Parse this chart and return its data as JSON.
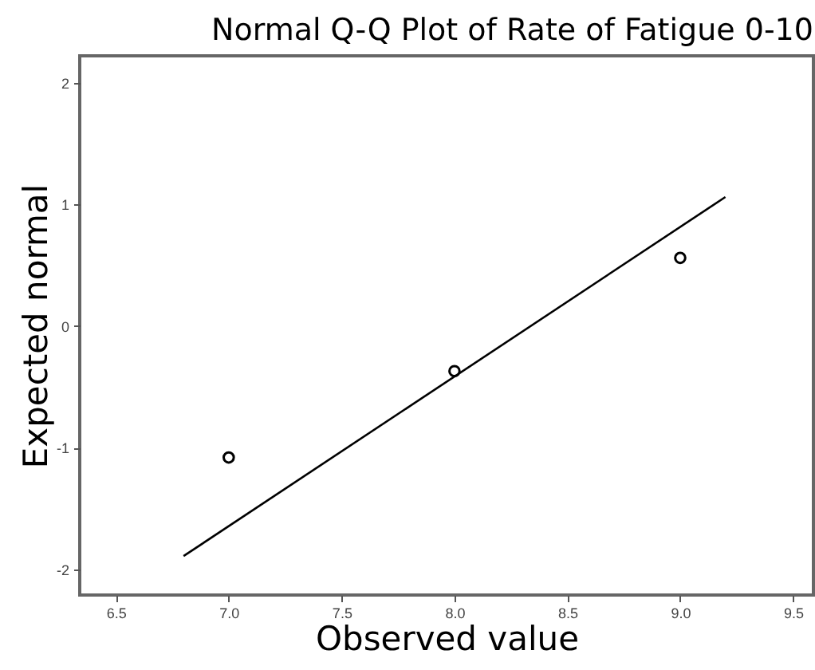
{
  "chart_data": {
    "type": "scatter",
    "title": "Normal Q-Q Plot of Rate of Fatigue 0-10",
    "xlabel": "Observed value",
    "ylabel": "Expected normal",
    "series": [
      {
        "type": "scatter",
        "marker": "circle",
        "color": "#000000",
        "x": [
          7.0,
          8.0,
          9.0
        ],
        "values": [
          -1.08,
          -0.37,
          0.56
        ]
      },
      {
        "type": "line",
        "color": "#000000",
        "x": [
          6.8,
          9.2
        ],
        "values": [
          -1.89,
          1.06
        ]
      }
    ],
    "xlim": [
      6.34,
      9.59
    ],
    "ylim": [
      -2.21,
      2.22
    ],
    "xticks": [
      {
        "value": 6.5,
        "label": "6.5"
      },
      {
        "value": 7.0,
        "label": "7.0"
      },
      {
        "value": 7.5,
        "label": "7.5"
      },
      {
        "value": 8.0,
        "label": "8.0"
      },
      {
        "value": 8.5,
        "label": "8.5"
      },
      {
        "value": 9.0,
        "label": "9.0"
      },
      {
        "value": 9.5,
        "label": "9.5"
      }
    ],
    "yticks": [
      -2,
      -1,
      0,
      1,
      2
    ]
  }
}
